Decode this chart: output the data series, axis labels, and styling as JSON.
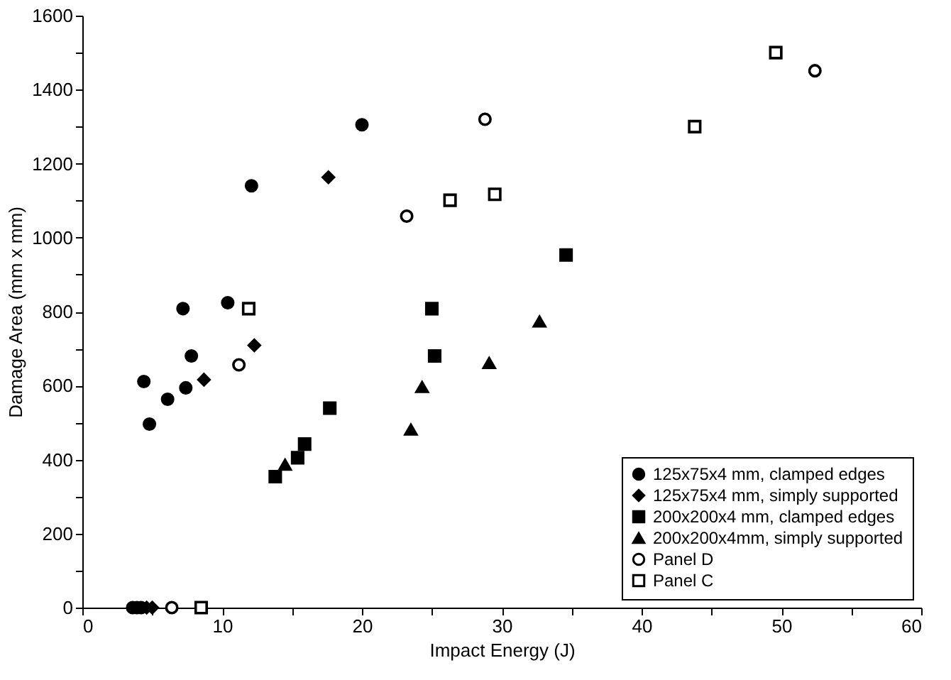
{
  "chart_data": {
    "type": "scatter",
    "xlabel": "Impact Energy (J)",
    "ylabel": "Damage Area (mm x mm)",
    "xlim": [
      0,
      60
    ],
    "xticks": [
      0,
      {
        "value": 5,
        "label": null
      },
      10,
      {
        "value": 15,
        "label": null
      },
      20,
      {
        "value": 25,
        "label": null
      },
      30,
      {
        "value": 35,
        "label": null
      },
      40,
      {
        "value": 45,
        "label": null
      },
      50,
      {
        "value": 55,
        "label": null
      },
      60
    ],
    "ylim": [
      0,
      1600
    ],
    "yticks": [
      0,
      {
        "value": 100,
        "label": null
      },
      200,
      {
        "value": 300,
        "label": null
      },
      400,
      {
        "value": 500,
        "label": null
      },
      600,
      {
        "value": 700,
        "label": null
      },
      800,
      {
        "value": 900,
        "label": null
      },
      1000,
      {
        "value": 1100,
        "label": null
      },
      1200,
      {
        "value": 1300,
        "label": null
      },
      1400,
      {
        "value": 1500,
        "label": null
      },
      1600
    ],
    "grid": false,
    "legend": "bottom right",
    "series": [
      {
        "name": "125x75x4 mm, clamped edges",
        "color": "#000000",
        "marker": "circle",
        "x": [
          20.0,
          12.1,
          7.2,
          10.4,
          7.8,
          4.4,
          7.4,
          6.1,
          4.8,
          3.6,
          3.9,
          4.2
        ],
        "values": [
          1305,
          1140,
          808,
          824,
          680,
          611,
          594,
          563,
          496,
          0,
          0,
          0
        ]
      },
      {
        "name": "125x75x4 mm, simply supported",
        "color": "#000000",
        "marker": "diamond",
        "x": [
          17.6,
          12.3,
          8.7,
          4.6,
          5.0
        ],
        "values": [
          1163,
          709,
          616,
          0,
          0
        ]
      },
      {
        "name": "200x200x4 mm, clamped edges",
        "color": "#000000",
        "marker": "square",
        "x": [
          13.8,
          15.4,
          15.9,
          17.7,
          25.0,
          25.2,
          34.6
        ],
        "values": [
          354,
          405,
          442,
          539,
          808,
          680,
          953
        ]
      },
      {
        "name": "200x200x4mm, simply supported",
        "color": "#000000",
        "marker": "triangle",
        "x": [
          14.5,
          23.5,
          24.3,
          29.1,
          32.7
        ],
        "values": [
          386,
          481,
          596,
          661,
          773
        ]
      },
      {
        "name": "Panel D",
        "color": "#ffffff",
        "marker": "circle",
        "x": [
          6.4,
          11.2,
          23.2,
          28.8,
          52.4
        ],
        "values": [
          0,
          656,
          1058,
          1320,
          1451
        ]
      },
      {
        "name": "Panel C",
        "color": "#ffffff",
        "marker": "square",
        "x": [
          8.5,
          11.9,
          26.3,
          29.5,
          43.8,
          49.6
        ],
        "values": [
          0,
          808,
          1101,
          1117,
          1300,
          1500
        ]
      }
    ]
  }
}
